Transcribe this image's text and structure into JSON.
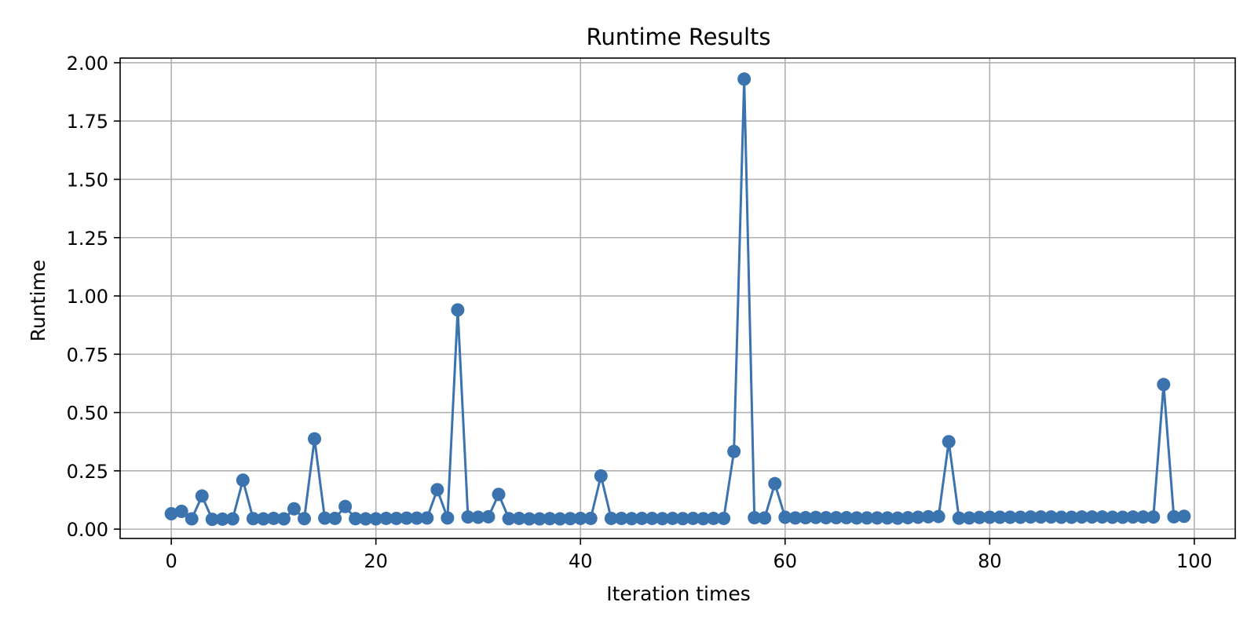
{
  "chart_data": {
    "type": "line",
    "title": "Runtime Results",
    "xlabel": "Iteration times",
    "ylabel": "Runtime",
    "xlim": [
      -5,
      104
    ],
    "ylim": [
      -0.04,
      2.02
    ],
    "x_ticks": [
      0,
      20,
      40,
      60,
      80,
      100
    ],
    "y_ticks": [
      0.0,
      0.25,
      0.5,
      0.75,
      1.0,
      1.25,
      1.5,
      1.75,
      2.0
    ],
    "x_tick_labels": [
      "0",
      "20",
      "40",
      "60",
      "80",
      "100"
    ],
    "y_tick_labels": [
      "0.00",
      "0.25",
      "0.50",
      "0.75",
      "1.00",
      "1.25",
      "1.50",
      "1.75",
      "2.00"
    ],
    "grid": true,
    "series": [
      {
        "color": "#3b73af",
        "marker": "circle",
        "x": [
          0,
          1,
          2,
          3,
          4,
          5,
          6,
          7,
          8,
          9,
          10,
          11,
          12,
          13,
          14,
          15,
          16,
          17,
          18,
          19,
          20,
          21,
          22,
          23,
          24,
          25,
          26,
          27,
          28,
          29,
          30,
          31,
          32,
          33,
          34,
          35,
          36,
          37,
          38,
          39,
          40,
          41,
          42,
          43,
          44,
          45,
          46,
          47,
          48,
          49,
          50,
          51,
          52,
          53,
          54,
          55,
          56,
          57,
          58,
          59,
          60,
          61,
          62,
          63,
          64,
          65,
          66,
          67,
          68,
          69,
          70,
          71,
          72,
          73,
          74,
          75,
          76,
          77,
          78,
          79,
          80,
          81,
          82,
          83,
          84,
          85,
          86,
          87,
          88,
          89,
          90,
          91,
          92,
          93,
          94,
          95,
          96,
          97,
          98,
          99
        ],
        "values": [
          0.066,
          0.076,
          0.044,
          0.142,
          0.042,
          0.043,
          0.044,
          0.21,
          0.045,
          0.044,
          0.046,
          0.044,
          0.087,
          0.045,
          0.387,
          0.047,
          0.046,
          0.097,
          0.045,
          0.044,
          0.044,
          0.046,
          0.046,
          0.047,
          0.047,
          0.048,
          0.169,
          0.048,
          0.94,
          0.052,
          0.051,
          0.053,
          0.149,
          0.045,
          0.046,
          0.044,
          0.044,
          0.045,
          0.044,
          0.045,
          0.046,
          0.046,
          0.228,
          0.046,
          0.046,
          0.045,
          0.046,
          0.046,
          0.045,
          0.046,
          0.045,
          0.046,
          0.045,
          0.046,
          0.046,
          0.333,
          1.93,
          0.049,
          0.048,
          0.195,
          0.051,
          0.048,
          0.049,
          0.05,
          0.049,
          0.049,
          0.049,
          0.048,
          0.048,
          0.048,
          0.048,
          0.047,
          0.049,
          0.051,
          0.053,
          0.054,
          0.375,
          0.047,
          0.048,
          0.05,
          0.051,
          0.051,
          0.051,
          0.051,
          0.052,
          0.052,
          0.052,
          0.051,
          0.051,
          0.052,
          0.052,
          0.052,
          0.051,
          0.051,
          0.052,
          0.052,
          0.052,
          0.62,
          0.053,
          0.055
        ]
      }
    ]
  },
  "colors": {
    "background": "#ffffff",
    "line": "#3b73af",
    "grid": "#b0b0b0",
    "axes": "#000000"
  }
}
